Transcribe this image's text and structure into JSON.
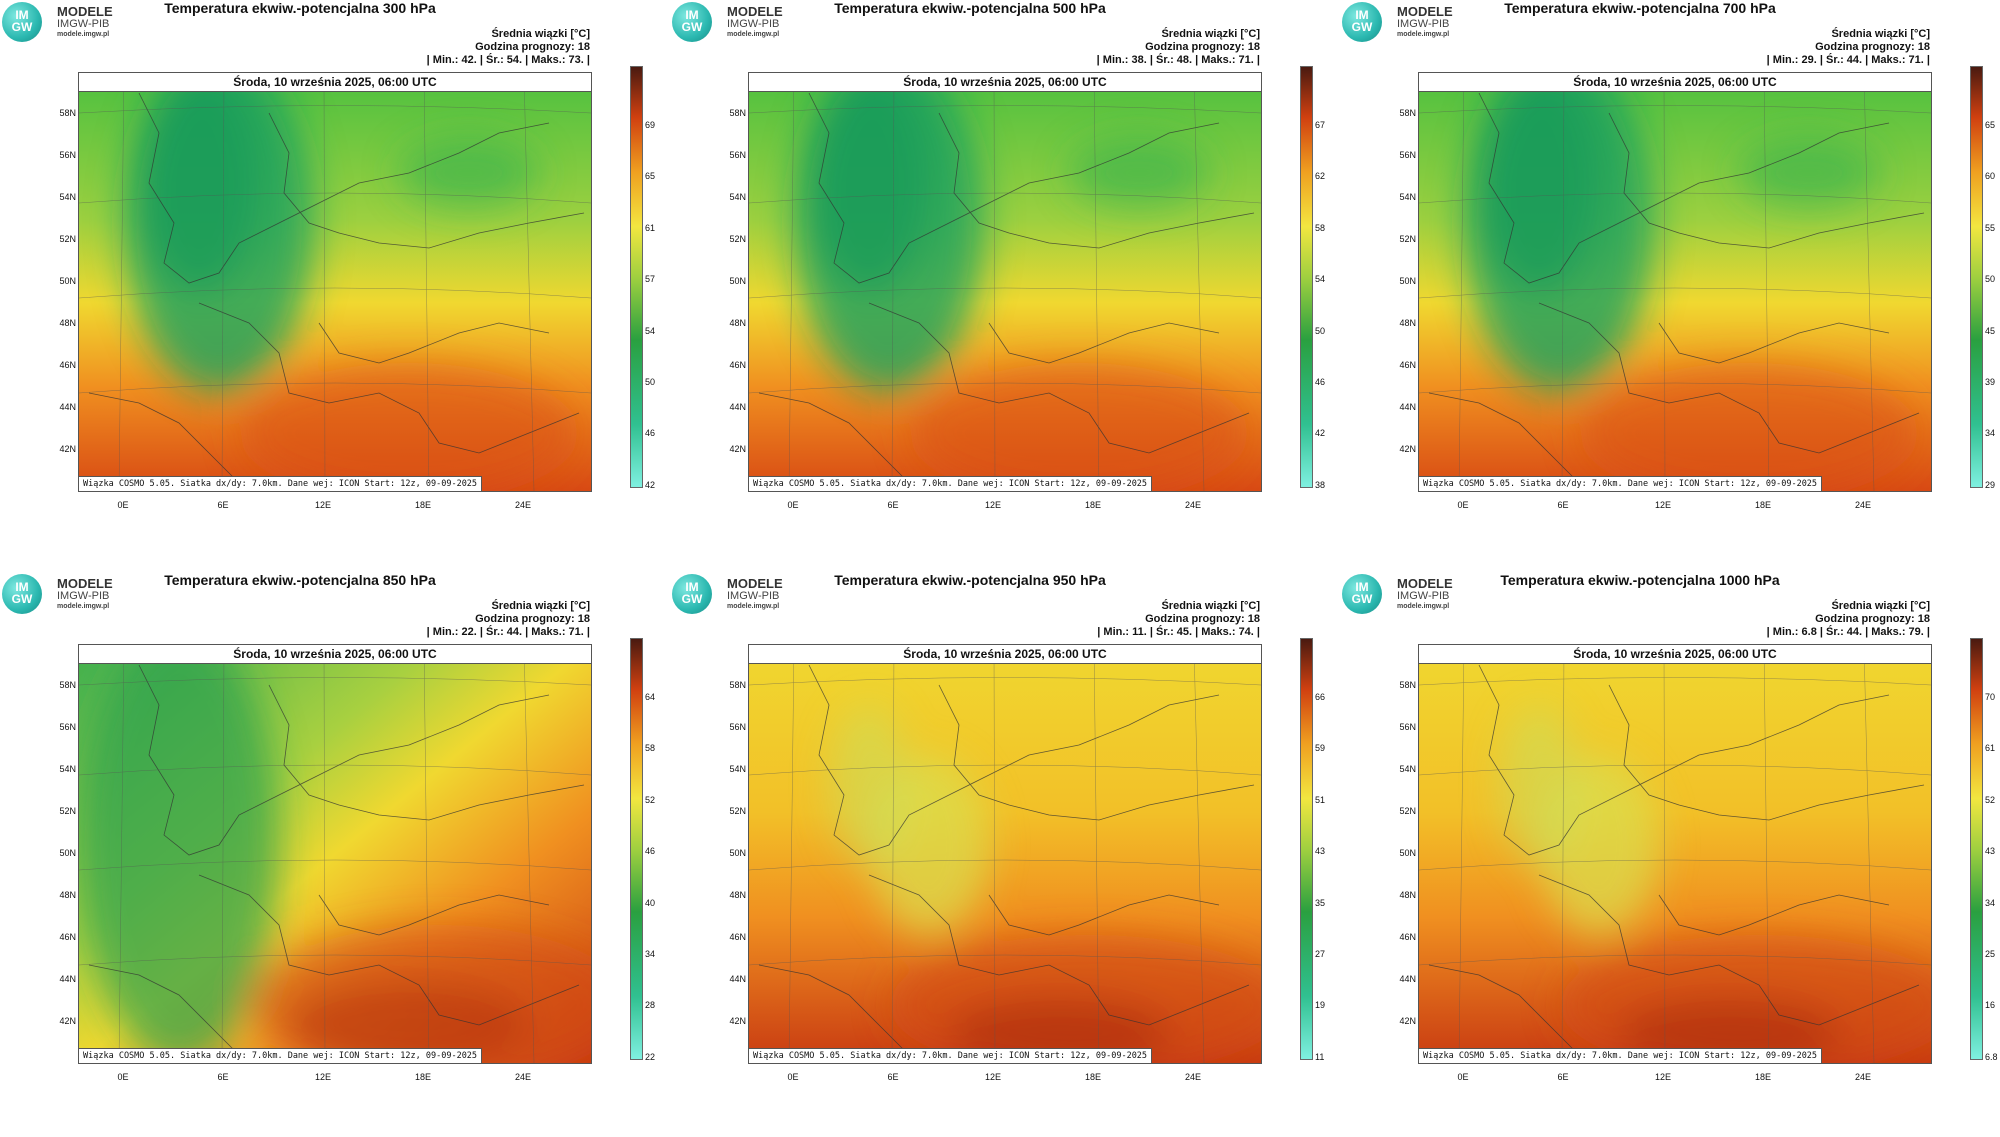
{
  "logo": {
    "circle_text_top": "IM",
    "circle_text_bottom": "GW",
    "brand": "MODELE",
    "org": "IMGW-PIB",
    "url": "modele.imgw.pl"
  },
  "common": {
    "date": "Środa, 10 września 2025, 06:00 UTC",
    "stats_line1": "Średnia wiązki [°C]",
    "stats_line2": "Godzina prognozy: 18",
    "footer": "Wiązka COSMO 5.05. Siatka dx/dy: 7.0km. Dane wej: ICON Start: 12z, 09-09-2025",
    "lat_labels": [
      "58N",
      "56N",
      "54N",
      "52N",
      "50N",
      "48N",
      "46N",
      "44N",
      "42N"
    ],
    "lon_labels": [
      "0E",
      "6E",
      "12E",
      "18E",
      "24E"
    ]
  },
  "panels": [
    {
      "title": "Temperatura ekwiw.-potencjalna 300 hPa",
      "stats": "| Min.: 42. | Śr.: 54. | Maks.: 73. |",
      "colorbar": [
        "69",
        "65",
        "61",
        "57",
        "54",
        "50",
        "46",
        "42"
      ],
      "palette": "cool"
    },
    {
      "title": "Temperatura ekwiw.-potencjalna 500 hPa",
      "stats": "| Min.: 38. | Śr.: 48. | Maks.: 71. |",
      "colorbar": [
        "67",
        "62",
        "58",
        "54",
        "50",
        "46",
        "42",
        "38"
      ],
      "palette": "cool"
    },
    {
      "title": "Temperatura ekwiw.-potencjalna 700 hPa",
      "stats": "| Min.: 29. | Śr.: 44. | Maks.: 71. |",
      "colorbar": [
        "65",
        "60",
        "55",
        "50",
        "45",
        "39",
        "34",
        "29"
      ],
      "palette": "cool"
    },
    {
      "title": "Temperatura ekwiw.-potencjalna 850 hPa",
      "stats": "| Min.: 22. | Śr.: 44. | Maks.: 71. |",
      "colorbar": [
        "64",
        "58",
        "52",
        "46",
        "40",
        "34",
        "28",
        "22"
      ],
      "palette": "mid"
    },
    {
      "title": "Temperatura ekwiw.-potencjalna 950 hPa",
      "stats": "| Min.: 11. | Śr.: 45. | Maks.: 74. |",
      "colorbar": [
        "66",
        "59",
        "51",
        "43",
        "35",
        "27",
        "19",
        "11"
      ],
      "palette": "warm"
    },
    {
      "title": "Temperatura ekwiw.-potencjalna 1000 hPa",
      "stats": "| Min.: 6.8 | Śr.: 44. | Maks.: 79. |",
      "colorbar": [
        "70",
        "61",
        "52",
        "43",
        "34",
        "25",
        "16",
        "6.8"
      ],
      "palette": "warm"
    }
  ]
}
